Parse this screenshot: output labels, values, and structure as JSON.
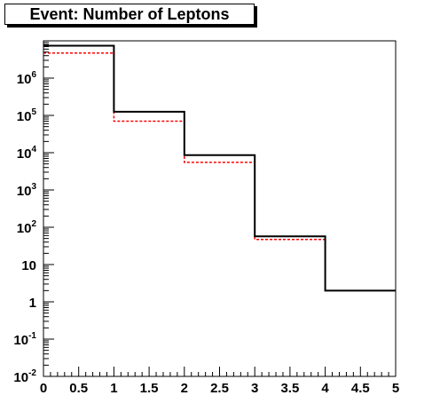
{
  "title": "Event: Number of Leptons",
  "chart_data": {
    "type": "histogram",
    "title": "Event: Number of Leptons",
    "xlabel": "",
    "ylabel": "",
    "xlim": [
      0,
      5
    ],
    "ylim": [
      0.01,
      10000000
    ],
    "y_scale": "log",
    "grid": false,
    "legend": "none",
    "bin_edges": [
      0,
      1,
      2,
      3,
      4,
      5
    ],
    "x_ticks": [
      {
        "value": 0,
        "label": "0"
      },
      {
        "value": 0.5,
        "label": "0.5"
      },
      {
        "value": 1,
        "label": "1"
      },
      {
        "value": 1.5,
        "label": "1.5"
      },
      {
        "value": 2,
        "label": "2"
      },
      {
        "value": 2.5,
        "label": "2.5"
      },
      {
        "value": 3,
        "label": "3"
      },
      {
        "value": 3.5,
        "label": "3.5"
      },
      {
        "value": 4,
        "label": "4"
      },
      {
        "value": 4.5,
        "label": "4.5"
      },
      {
        "value": 5,
        "label": "5"
      }
    ],
    "y_ticks": [
      {
        "exp": -2,
        "base": "10",
        "sup": "-2"
      },
      {
        "exp": -1,
        "base": "10",
        "sup": "-1"
      },
      {
        "exp": 0,
        "base": "1",
        "sup": ""
      },
      {
        "exp": 1,
        "base": "10",
        "sup": ""
      },
      {
        "exp": 2,
        "base": "10",
        "sup": "2"
      },
      {
        "exp": 3,
        "base": "10",
        "sup": "3"
      },
      {
        "exp": 4,
        "base": "10",
        "sup": "4"
      },
      {
        "exp": 5,
        "base": "10",
        "sup": "5"
      },
      {
        "exp": 6,
        "base": "10",
        "sup": "6"
      }
    ],
    "series": [
      {
        "values": [
          7400000,
          125000,
          8600,
          57,
          2
        ],
        "color": "#000000",
        "style": "solid"
      },
      {
        "values": [
          4700000,
          70000,
          5500,
          47,
          2
        ],
        "color": "#ff0000",
        "style": "dashed"
      }
    ]
  }
}
